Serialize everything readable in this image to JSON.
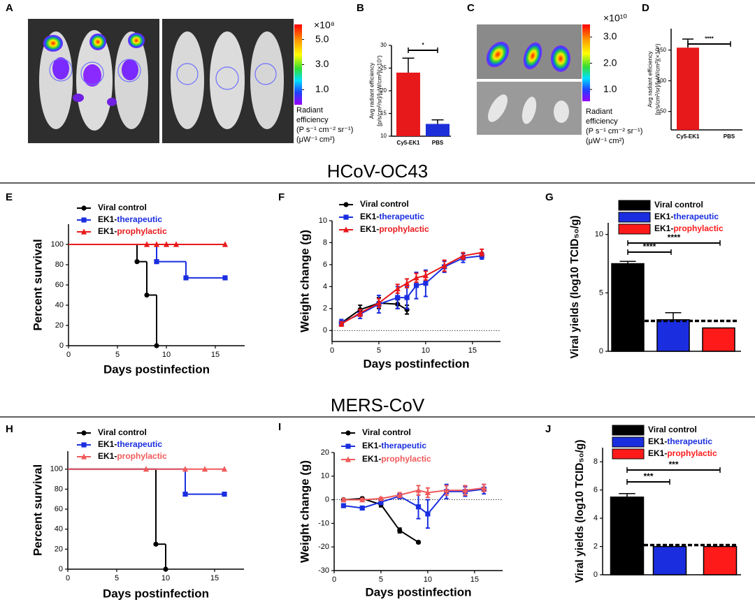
{
  "figure": {
    "panel_labels": [
      "A",
      "B",
      "C",
      "D",
      "E",
      "F",
      "G",
      "H",
      "I",
      "J"
    ],
    "section_titles": [
      "HCoV-OC43",
      "MERS-CoV"
    ],
    "colorbars": [
      {
        "multiplier": "×10⁸",
        "lim": [
          -0.2,
          6.2
        ],
        "ticks": [
          {
            "value": 5,
            "label": "5.0"
          },
          {
            "value": 3,
            "label": "3.0"
          },
          {
            "value": 1,
            "label": "1.0"
          }
        ],
        "label": [
          "Radiant",
          "efficiency",
          "(P s⁻¹ cm⁻² sr⁻¹)",
          "(μW⁻¹ cm²)"
        ]
      },
      {
        "multiplier": "×10¹⁰",
        "lim": [
          0.55,
          3.48
        ],
        "ticks": [
          {
            "value": 3,
            "label": "3.0"
          },
          {
            "value": 2,
            "label": "2.0"
          },
          {
            "value": 1,
            "label": "1.0"
          }
        ],
        "label": [
          "Radiant",
          "efficiency",
          "(P s⁻¹ cm⁻² sr⁻¹)",
          "(μW⁻¹ cm²)"
        ]
      }
    ]
  },
  "chart_data": [
    {
      "type": "bar",
      "ylabel": [
        "Avg radiant efficiency",
        "[p/s/cm²/sr]/[μW/cm²](×10⁷)"
      ],
      "categories": [
        "Cy5-EK1",
        "PBS"
      ],
      "values": [
        24,
        12.7
      ],
      "errors": [
        3.2,
        0.9
      ],
      "colors": [
        "#e8191b",
        "#1c2fd8"
      ],
      "ylim": [
        10,
        30
      ],
      "yticks": [
        10,
        15,
        20,
        25,
        30
      ],
      "annotations": [
        "*"
      ]
    },
    {
      "type": "bar",
      "ylabel": [
        "Avg radiant efficiency",
        "[p/s/cm²/sr]/[μW/cm²](×10⁸)"
      ],
      "categories": [
        "Cy5-EK1",
        "PBS"
      ],
      "values": [
        154,
        1
      ],
      "errors": [
        14,
        0
      ],
      "colors": [
        "#e8191b",
        "#1c2fd8"
      ],
      "ylim": [
        20,
        185
      ],
      "yticks": [
        50,
        100,
        150
      ],
      "annotations": [
        "****"
      ]
    },
    {
      "type": "step",
      "xlabel": "Days postinfection",
      "ylabel": "Percent survival",
      "xlim": [
        0,
        18
      ],
      "xticks": [
        0,
        5,
        10,
        15
      ],
      "ylim": [
        0,
        120
      ],
      "yticks": [
        0,
        20,
        40,
        60,
        80,
        100
      ],
      "series": [
        {
          "name": "Viral control",
          "color": "#000000",
          "marker": "circle",
          "x": [
            0,
            7,
            8,
            9
          ],
          "values": [
            100,
            83,
            50,
            0
          ]
        },
        {
          "name": "EK1-therapeutic",
          "color": "#1a2ee0",
          "marker": "square",
          "x": [
            0,
            9,
            12,
            16
          ],
          "values": [
            100,
            83,
            67,
            67
          ]
        },
        {
          "name": "EK1-prophylactic",
          "color": "#e8191b",
          "marker": "triangle",
          "x": [
            0,
            8,
            9,
            10,
            11,
            16
          ],
          "values": [
            100,
            100,
            100,
            100,
            100,
            100
          ]
        }
      ]
    },
    {
      "type": "line",
      "xlabel": "Days postinfection",
      "ylabel": "Weight change (g)",
      "xlim": [
        0,
        18
      ],
      "xticks": [
        0,
        5,
        10,
        15
      ],
      "ylim": [
        -1,
        10
      ],
      "yticks": [
        0,
        2,
        4,
        6,
        8,
        10
      ],
      "reference_line": 0,
      "series": [
        {
          "name": "Viral control",
          "color": "#000000",
          "marker": "circle",
          "x": [
            1,
            3,
            5,
            7,
            8
          ],
          "values": [
            0.7,
            1.9,
            2.5,
            2.4,
            1.9
          ],
          "errors": [
            0.3,
            0.4,
            0.5,
            0.4,
            0.4
          ]
        },
        {
          "name": "EK1-therapeutic",
          "color": "#1a2ee0",
          "marker": "square",
          "x": [
            1,
            3,
            5,
            7,
            8,
            9,
            10,
            12,
            14,
            16
          ],
          "values": [
            0.7,
            1.5,
            2.4,
            3.0,
            3.0,
            4.1,
            4.3,
            5.8,
            6.6,
            6.8
          ],
          "errors": [
            0.3,
            0.4,
            0.8,
            1.0,
            1.0,
            1.2,
            1.2,
            0.5,
            0.4,
            0.3
          ]
        },
        {
          "name": "EK1-prophylactic",
          "color": "#e8191b",
          "marker": "triangle",
          "x": [
            1,
            3,
            5,
            7,
            8,
            9,
            10,
            12,
            14,
            16
          ],
          "values": [
            0.6,
            1.6,
            2.5,
            3.8,
            4.3,
            4.8,
            5.0,
            5.9,
            6.8,
            7.1
          ],
          "errors": [
            0.2,
            0.3,
            0.4,
            0.4,
            0.4,
            0.4,
            0.4,
            0.5,
            0.3,
            0.3
          ]
        }
      ]
    },
    {
      "type": "bar",
      "legend": "top",
      "ylabel": "Viral yields (log10 TCID₅₀/g)",
      "categories": [
        "Viral control",
        "EK1-therapeutic",
        "EK1-prophylactic"
      ],
      "values": [
        7.5,
        2.7,
        2.0
      ],
      "errors": [
        0.2,
        0.6,
        0
      ],
      "colors": [
        "#000000",
        "#1a2ee0",
        "#ff1a1a"
      ],
      "ylim": [
        0,
        11
      ],
      "yticks": [
        0,
        5,
        10
      ],
      "detection_limit": 2.6,
      "annotations": [
        "****",
        "****"
      ]
    },
    {
      "type": "step",
      "xlabel": "Days postinfection",
      "ylabel": "Percent survival",
      "xlim": [
        0,
        18
      ],
      "xticks": [
        0,
        5,
        10,
        15
      ],
      "ylim": [
        0,
        118
      ],
      "yticks": [
        0,
        20,
        40,
        60,
        80,
        100
      ],
      "series": [
        {
          "name": "Viral control",
          "color": "#000000",
          "marker": "circle",
          "x": [
            0,
            9,
            10
          ],
          "values": [
            100,
            25,
            0
          ]
        },
        {
          "name": "EK1-therapeutic",
          "color": "#1a2ee0",
          "marker": "square",
          "x": [
            0,
            12,
            16
          ],
          "values": [
            100,
            75,
            75
          ]
        },
        {
          "name": "EK1-prophylactic",
          "color": "#f05a5a",
          "marker": "triangle",
          "x": [
            0,
            8,
            12,
            14,
            16
          ],
          "values": [
            100,
            100,
            100,
            100,
            100
          ]
        }
      ]
    },
    {
      "type": "line",
      "xlabel": "Days postinfection",
      "ylabel": "Weight change (g)",
      "xlim": [
        0,
        18
      ],
      "xticks": [
        0,
        5,
        10,
        15
      ],
      "ylim": [
        -30,
        20
      ],
      "yticks": [
        -30,
        -20,
        -10,
        0,
        10,
        20
      ],
      "reference_line": 0,
      "series": [
        {
          "name": "Viral control",
          "color": "#000000",
          "marker": "circle",
          "x": [
            1,
            3,
            5,
            7,
            9
          ],
          "values": [
            0,
            0.5,
            -2,
            -13,
            -18
          ],
          "errors": [
            0.5,
            0.5,
            1,
            1,
            0.5
          ]
        },
        {
          "name": "EK1-therapeutic",
          "color": "#1a2ee0",
          "marker": "square",
          "x": [
            1,
            3,
            5,
            7,
            9,
            10,
            12,
            14,
            16
          ],
          "values": [
            -2.5,
            -3.5,
            -1,
            1.5,
            -3,
            -6,
            3.5,
            3.5,
            4.5
          ],
          "errors": [
            0.5,
            0.5,
            1,
            1,
            5,
            6,
            3,
            2,
            2
          ]
        },
        {
          "name": "EK1-prophylactic",
          "color": "#f05a5a",
          "marker": "triangle",
          "x": [
            1,
            3,
            5,
            7,
            9,
            10,
            12,
            14,
            16
          ],
          "values": [
            0,
            0,
            0.5,
            2,
            4,
            3,
            4,
            4,
            5
          ],
          "errors": [
            0.5,
            0.5,
            0.5,
            1,
            2,
            2,
            2,
            2,
            1.5
          ]
        }
      ]
    },
    {
      "type": "bar",
      "legend": "top",
      "ylabel": "Viral yields (log10 TCID₅₀/g)",
      "categories": [
        "Viral control",
        "EK1-therapeutic",
        "EK1-prophylactic"
      ],
      "values": [
        5.5,
        2.0,
        2.0
      ],
      "errors": [
        0.25,
        0,
        0
      ],
      "colors": [
        "#000000",
        "#1a2ee0",
        "#ff1a1a"
      ],
      "ylim": [
        0,
        9
      ],
      "yticks": [
        0,
        2,
        4,
        6,
        8
      ],
      "detection_limit": 2.1,
      "annotations": [
        "***",
        "***"
      ]
    }
  ]
}
